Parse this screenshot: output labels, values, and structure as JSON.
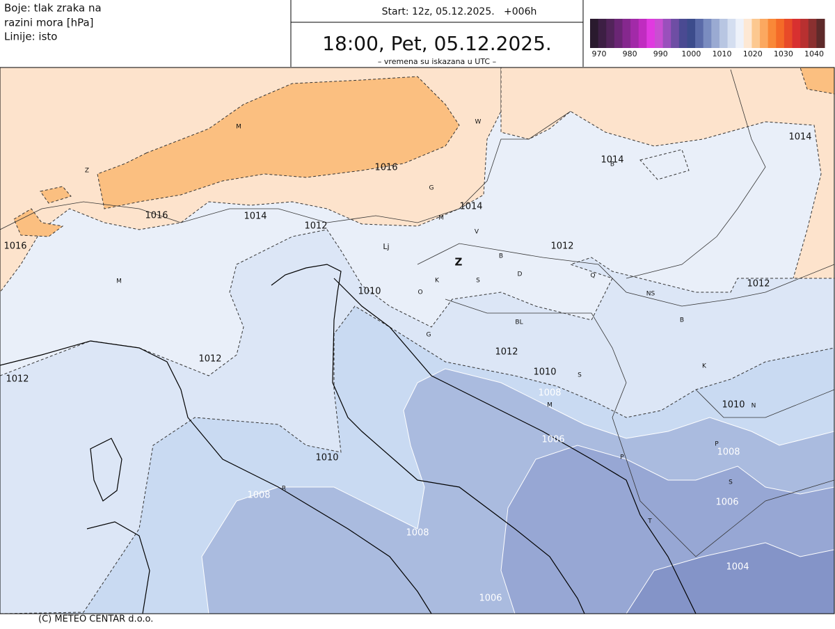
{
  "header": {
    "legend_title": [
      "Boje: tlak zraka na",
      "razini mora [hPa]",
      "Linije: isto"
    ],
    "start": "Start: 12z, 05.12.2025.   +006h",
    "valid_time": "18:00, Pet, 05.12.2025.",
    "note": "– vremena su iskazana u UTC –"
  },
  "colorbar": {
    "colors": [
      "#2a1a2e",
      "#3d1f44",
      "#52245a",
      "#6a2674",
      "#85288e",
      "#a22aa8",
      "#c02cc0",
      "#e03ae0",
      "#c94fd2",
      "#9a50bc",
      "#6e4ea4",
      "#4a4a92",
      "#3c4c8c",
      "#5a6aa8",
      "#7a8cc0",
      "#9aaad2",
      "#b8c6e2",
      "#d4def0",
      "#eef2fa",
      "#fde8d4",
      "#fcc890",
      "#fba860",
      "#f98838",
      "#f46a28",
      "#e84a28",
      "#d83030",
      "#b83030",
      "#8a3030",
      "#5e2a2a"
    ],
    "labels": [
      970,
      980,
      990,
      1000,
      1010,
      1020,
      1030,
      1040
    ]
  },
  "map": {
    "contour_labels": [
      "1016",
      "1014",
      "1014",
      "1016",
      "1014",
      "1016",
      "1014",
      "1012",
      "1012",
      "1012",
      "1010",
      "1012",
      "1012",
      "1012",
      "1010",
      "1010",
      "1010",
      "1008",
      "1006",
      "1008",
      "1006",
      "1008",
      "1008",
      "1004",
      "1006"
    ],
    "place_labels": [
      "M",
      "W",
      "Z",
      "G",
      "B",
      "M",
      "V",
      "Lj",
      "Z",
      "B",
      "S",
      "D",
      "K",
      "O",
      "Q",
      "NS",
      "M",
      "BL",
      "B",
      "G",
      "K",
      "S",
      "M",
      "N",
      "P",
      "P",
      "S",
      "T",
      "R"
    ]
  },
  "footer": "(C) METEO CENTAR d.o.o."
}
